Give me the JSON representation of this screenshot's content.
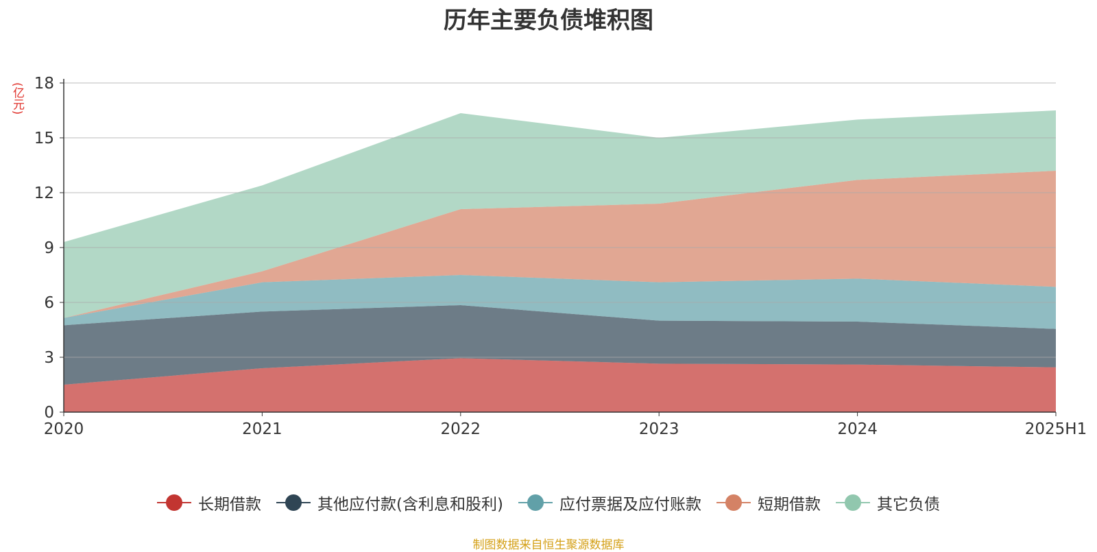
{
  "chart_data": {
    "type": "area",
    "stacked": true,
    "title": "历年主要负债堆积图",
    "ylabel": "(亿元)",
    "xlabel": "",
    "categories": [
      "2020",
      "2021",
      "2022",
      "2023",
      "2024",
      "2025H1"
    ],
    "ylim": [
      0,
      18
    ],
    "yticks": [
      0,
      3,
      6,
      9,
      12,
      15,
      18
    ],
    "grid": true,
    "legend_position": "bottom",
    "series": [
      {
        "name": "长期借款",
        "color": "#c23531",
        "values": [
          1.5,
          2.4,
          2.95,
          2.65,
          2.6,
          2.45
        ]
      },
      {
        "name": "其他应付款(含利息和股利)",
        "color": "#2f4554",
        "values": [
          3.25,
          3.1,
          2.9,
          2.35,
          2.35,
          2.1
        ]
      },
      {
        "name": "应付票据及应付账款",
        "color": "#61a0a8",
        "values": [
          0.4,
          1.6,
          1.65,
          2.1,
          2.35,
          2.3
        ]
      },
      {
        "name": "短期借款",
        "color": "#d48265",
        "values": [
          0.0,
          0.6,
          3.6,
          4.3,
          5.4,
          6.35
        ]
      },
      {
        "name": "其它负债",
        "color": "#91c7ae",
        "values": [
          4.15,
          4.7,
          5.25,
          3.6,
          3.3,
          3.3
        ]
      }
    ]
  },
  "source_text": "制图数据来自恒生聚源数据库"
}
